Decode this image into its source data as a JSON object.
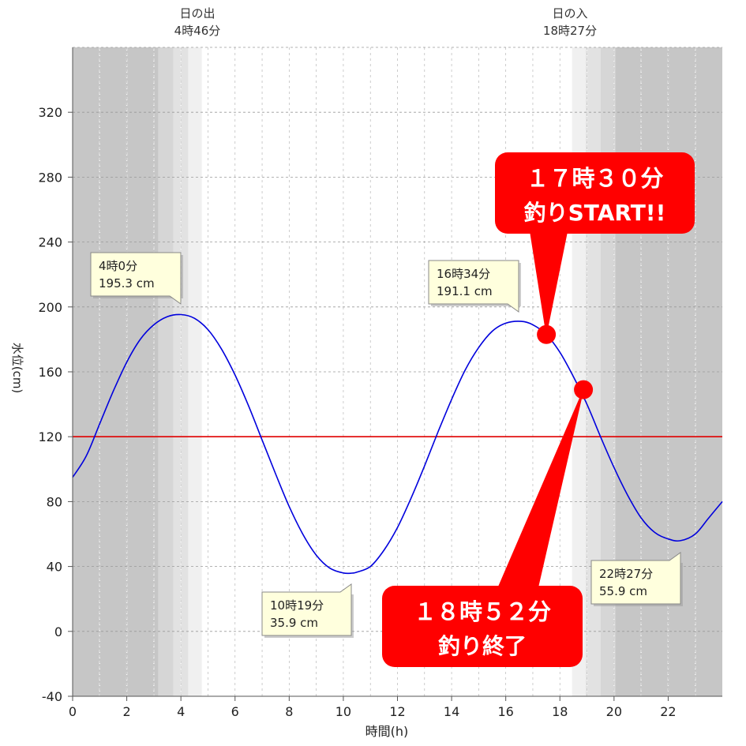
{
  "chart_data": {
    "type": "line",
    "xlabel": "時間(h)",
    "ylabel": "水位(cm)",
    "xlim": [
      0,
      24
    ],
    "ylim": [
      -40,
      360
    ],
    "x_ticks": [
      "0",
      "2",
      "4",
      "6",
      "8",
      "10",
      "12",
      "14",
      "16",
      "18",
      "20",
      "22"
    ],
    "y_ticks": [
      "-40",
      "0",
      "40",
      "80",
      "120",
      "160",
      "200",
      "240",
      "280",
      "320"
    ],
    "grid": true,
    "reference_line": {
      "value": 120,
      "color": "#e00000"
    },
    "sunrise": {
      "label": "日の出",
      "time": "4時46分",
      "hour": 4.77
    },
    "sunset": {
      "label": "日の入",
      "time": "18時27分",
      "hour": 18.45
    },
    "series": [
      {
        "color": "#0000dd",
        "points": [
          [
            0,
            95
          ],
          [
            0.5,
            108
          ],
          [
            1,
            128
          ],
          [
            1.5,
            148
          ],
          [
            2,
            166
          ],
          [
            2.5,
            180
          ],
          [
            3,
            189
          ],
          [
            3.5,
            194
          ],
          [
            4,
            195.3
          ],
          [
            4.5,
            193
          ],
          [
            5,
            186
          ],
          [
            5.5,
            174
          ],
          [
            6,
            158
          ],
          [
            6.5,
            139
          ],
          [
            7,
            118
          ],
          [
            7.5,
            97
          ],
          [
            8,
            77
          ],
          [
            8.5,
            60
          ],
          [
            9,
            47
          ],
          [
            9.5,
            39
          ],
          [
            10,
            36
          ],
          [
            10.32,
            35.9
          ],
          [
            10.5,
            36.5
          ],
          [
            11,
            40
          ],
          [
            11.5,
            50
          ],
          [
            12,
            64
          ],
          [
            12.5,
            82
          ],
          [
            13,
            102
          ],
          [
            13.5,
            123
          ],
          [
            14,
            143
          ],
          [
            14.5,
            161
          ],
          [
            15,
            175
          ],
          [
            15.5,
            185
          ],
          [
            16,
            190
          ],
          [
            16.57,
            191.1
          ],
          [
            17,
            189
          ],
          [
            17.5,
            183
          ],
          [
            18,
            172
          ],
          [
            18.5,
            157
          ],
          [
            19,
            140
          ],
          [
            19.5,
            120
          ],
          [
            20,
            101
          ],
          [
            20.5,
            84
          ],
          [
            21,
            70
          ],
          [
            21.5,
            61
          ],
          [
            22,
            57
          ],
          [
            22.45,
            55.9
          ],
          [
            23,
            60
          ],
          [
            23.5,
            70
          ],
          [
            24,
            80
          ]
        ]
      }
    ],
    "annotations": [
      {
        "line1": "4時0分",
        "line2": "195.3 cm",
        "x": 4.0,
        "y": 195.3
      },
      {
        "line1": "10時19分",
        "line2": "35.9 cm",
        "x": 10.32,
        "y": 35.9
      },
      {
        "line1": "16時34分",
        "line2": "191.1 cm",
        "x": 16.57,
        "y": 191.1
      },
      {
        "line1": "22時27分",
        "line2": "55.9 cm",
        "x": 22.45,
        "y": 55.9
      }
    ],
    "callouts": [
      {
        "line1": "１７時３０分",
        "line2": "釣りSTART!!",
        "x": 17.5,
        "y": 183
      },
      {
        "line1": "１８時５２分",
        "line2": "釣り終了",
        "x": 18.87,
        "y": 149
      }
    ]
  }
}
